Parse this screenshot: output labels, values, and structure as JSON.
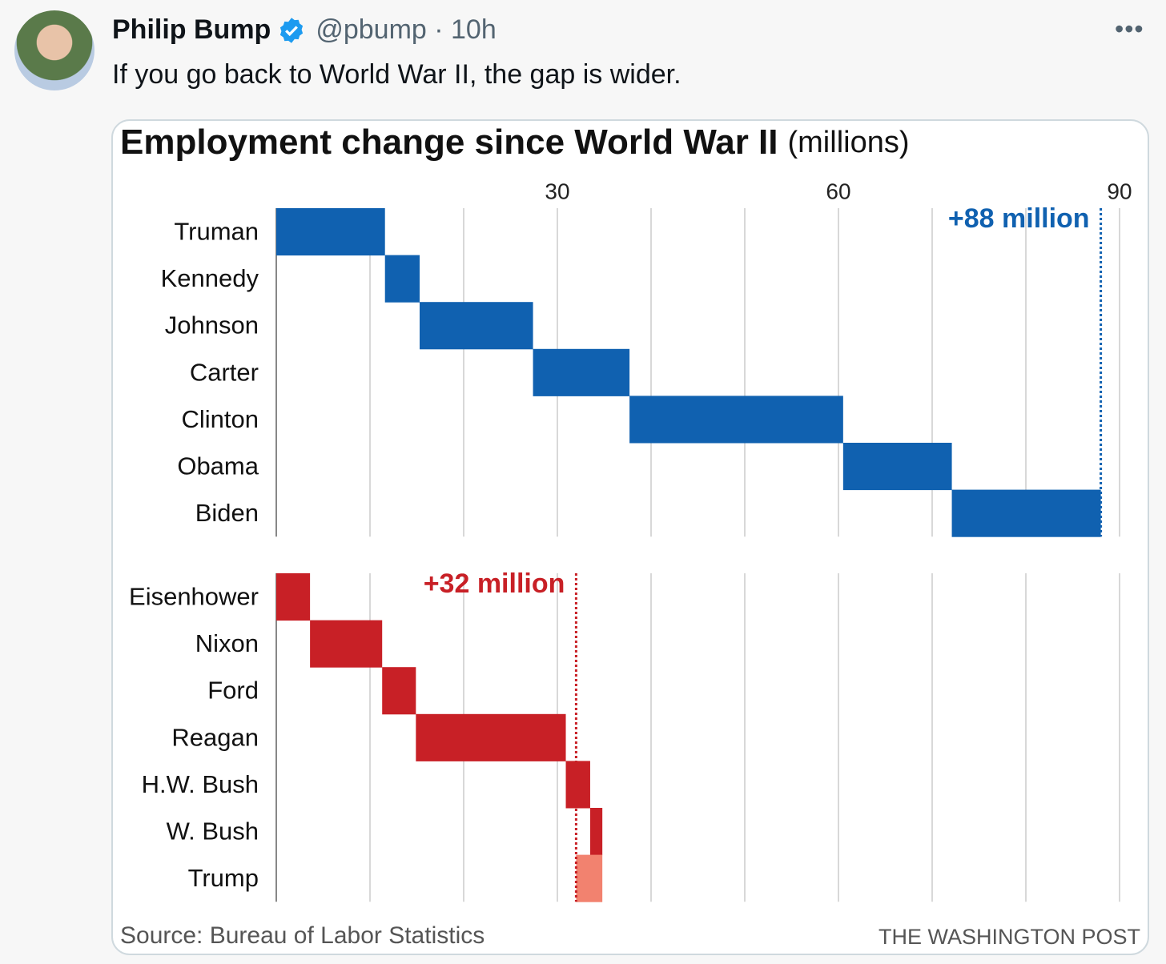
{
  "tweet": {
    "name": "Philip Bump",
    "meta": "@pbump · 10h",
    "text": "If you go back to World War II, the gap is wider."
  },
  "chart_data": {
    "type": "waterfall",
    "title": "Employment change since World War II",
    "unit": "(millions)",
    "source": "Source: Bureau of Labor Statistics",
    "credit": "THE WASHINGTON POST",
    "xlim": [
      0,
      90
    ],
    "xticks": [
      30,
      60,
      90
    ],
    "xminorticks": [
      10,
      20,
      40,
      50,
      70,
      80
    ],
    "grid": true,
    "panels": [
      {
        "categories": [
          "Truman",
          "Kennedy",
          "Johnson",
          "Carter",
          "Clinton",
          "Obama",
          "Biden"
        ],
        "values": [
          11.6,
          3.7,
          12.1,
          10.3,
          22.8,
          11.6,
          15.9
        ],
        "color": "#1061b0",
        "annotation": {
          "value": 88,
          "label": "+88 million"
        }
      },
      {
        "categories": [
          "Eisenhower",
          "Nixon",
          "Ford",
          "Reagan",
          "H.W. Bush",
          "W. Bush",
          "Trump"
        ],
        "values": [
          3.6,
          7.7,
          3.6,
          16.0,
          2.6,
          1.3,
          -2.8
        ],
        "color": "#c82026",
        "negative_color": "#f2826f",
        "annotation": {
          "value": 32,
          "label": "+32 million"
        }
      }
    ]
  }
}
